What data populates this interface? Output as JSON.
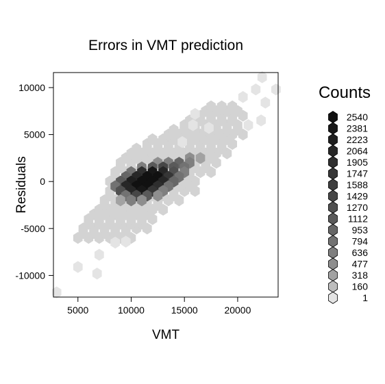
{
  "chart_data": {
    "type": "heatmap",
    "subtype": "hexbin",
    "title": "Errors in VMT prediction",
    "xlabel": "VMT",
    "ylabel": "Residuals",
    "xlim": [
      2700,
      23800
    ],
    "ylim": [
      -12300,
      11600
    ],
    "x_ticks": [
      5000,
      10000,
      15000,
      20000
    ],
    "x_tick_labels": [
      "5000",
      "10000",
      "15000",
      "20000"
    ],
    "y_ticks": [
      -10000,
      -5000,
      0,
      5000,
      10000
    ],
    "y_tick_labels": [
      "-10000",
      "-5000",
      "0",
      "5000",
      "10000"
    ],
    "grid": false,
    "legend": {
      "title": "Counts",
      "placement": "right",
      "levels": [
        "2540",
        "2381",
        "2223",
        "2064",
        "1905",
        "1747",
        "1588",
        "1429",
        "1270",
        "1112",
        "953",
        "794",
        "636",
        "477",
        "318",
        "160",
        "1"
      ],
      "colors": [
        "#111111",
        "#181818",
        "#1f1f1f",
        "#272727",
        "#2e2e2e",
        "#363636",
        "#3e3e3e",
        "#474747",
        "#505050",
        "#5a5a5a",
        "#666666",
        "#727272",
        "#7f7f7f",
        "#8e8e8e",
        "#a2a2a2",
        "#bcbcbc",
        "#e4e4e4"
      ]
    },
    "hex_geometry": {
      "x_step": 1000,
      "y_step": 1000,
      "hex_radius_x": 500,
      "hex_radius_y": 620
    },
    "bin_color_main": "#d3d3d3",
    "regions": [
      {
        "y": -6000,
        "x0": 5000,
        "x1": 10000
      },
      {
        "y": -5000,
        "x0": 5500,
        "x1": 11500
      },
      {
        "y": -4000,
        "x0": 6000,
        "x1": 12000
      },
      {
        "y": -3000,
        "x0": 7000,
        "x1": 13000
      },
      {
        "y": -2000,
        "x0": 7500,
        "x1": 14500
      },
      {
        "y": -1000,
        "x0": 8000,
        "x1": 16000
      },
      {
        "y": 0,
        "x0": 8000,
        "x1": 16500
      },
      {
        "y": 1000,
        "x0": 8500,
        "x1": 18000
      },
      {
        "y": 2000,
        "x0": 9000,
        "x1": 18500
      },
      {
        "y": 3000,
        "x0": 10000,
        "x1": 19500
      },
      {
        "y": 4000,
        "x0": 11500,
        "x1": 20000
      },
      {
        "y": 5000,
        "x0": 13500,
        "x1": 20500
      },
      {
        "y": 6000,
        "x0": 15000,
        "x1": 20500
      },
      {
        "y": 7000,
        "x0": 16500,
        "x1": 20500
      },
      {
        "y": 8000,
        "x0": 17500,
        "x1": 19500
      }
    ],
    "bins": [
      {
        "x": 15500,
        "y": 2500,
        "count": 477
      },
      {
        "x": 16500,
        "y": 2500,
        "count": 318
      },
      {
        "x": 12500,
        "y": 2000,
        "count": 477
      },
      {
        "x": 13500,
        "y": 2000,
        "count": 636
      },
      {
        "x": 14500,
        "y": 2000,
        "count": 953
      },
      {
        "x": 15500,
        "y": 2000,
        "count": 636
      },
      {
        "x": 11000,
        "y": 1500,
        "count": 636
      },
      {
        "x": 12000,
        "y": 1500,
        "count": 1112
      },
      {
        "x": 13000,
        "y": 1500,
        "count": 1429
      },
      {
        "x": 14000,
        "y": 1500,
        "count": 1112
      },
      {
        "x": 15000,
        "y": 1500,
        "count": 794
      },
      {
        "x": 10000,
        "y": 1000,
        "count": 794
      },
      {
        "x": 11000,
        "y": 1000,
        "count": 1905
      },
      {
        "x": 12000,
        "y": 1000,
        "count": 2381
      },
      {
        "x": 13000,
        "y": 1000,
        "count": 2064
      },
      {
        "x": 14000,
        "y": 1000,
        "count": 1270
      },
      {
        "x": 15000,
        "y": 1000,
        "count": 636
      },
      {
        "x": 9500,
        "y": 500,
        "count": 953
      },
      {
        "x": 10500,
        "y": 500,
        "count": 2064
      },
      {
        "x": 11500,
        "y": 500,
        "count": 2540
      },
      {
        "x": 12500,
        "y": 500,
        "count": 2540
      },
      {
        "x": 13500,
        "y": 500,
        "count": 1747
      },
      {
        "x": 14500,
        "y": 500,
        "count": 794
      },
      {
        "x": 9000,
        "y": 0,
        "count": 1112
      },
      {
        "x": 10000,
        "y": 0,
        "count": 2223
      },
      {
        "x": 11000,
        "y": 0,
        "count": 2540
      },
      {
        "x": 12000,
        "y": 0,
        "count": 2540
      },
      {
        "x": 13000,
        "y": 0,
        "count": 2064
      },
      {
        "x": 14000,
        "y": 0,
        "count": 953
      },
      {
        "x": 8500,
        "y": -500,
        "count": 794
      },
      {
        "x": 9500,
        "y": -500,
        "count": 2064
      },
      {
        "x": 10500,
        "y": -500,
        "count": 2540
      },
      {
        "x": 11500,
        "y": -500,
        "count": 2540
      },
      {
        "x": 12500,
        "y": -500,
        "count": 1905
      },
      {
        "x": 13500,
        "y": -500,
        "count": 794
      },
      {
        "x": 9000,
        "y": -1000,
        "count": 1270
      },
      {
        "x": 10000,
        "y": -1000,
        "count": 2064
      },
      {
        "x": 11000,
        "y": -1000,
        "count": 2381
      },
      {
        "x": 12000,
        "y": -1000,
        "count": 1747
      },
      {
        "x": 13000,
        "y": -1000,
        "count": 636
      },
      {
        "x": 9500,
        "y": -1500,
        "count": 794
      },
      {
        "x": 10500,
        "y": -1500,
        "count": 1429
      },
      {
        "x": 11500,
        "y": -1500,
        "count": 1112
      },
      {
        "x": 12500,
        "y": -1500,
        "count": 477
      },
      {
        "x": 9000,
        "y": -2000,
        "count": 318
      },
      {
        "x": 10000,
        "y": -2000,
        "count": 636
      },
      {
        "x": 11000,
        "y": -2000,
        "count": 477
      }
    ],
    "outliers": [
      {
        "x": 3000,
        "y": -11800,
        "count": 1
      },
      {
        "x": 5000,
        "y": -9100,
        "count": 1
      },
      {
        "x": 6800,
        "y": -9800,
        "count": 1
      },
      {
        "x": 7000,
        "y": -7800,
        "count": 1
      },
      {
        "x": 8500,
        "y": -6500,
        "count": 1
      },
      {
        "x": 9500,
        "y": -6400,
        "count": 1
      },
      {
        "x": 22300,
        "y": 11100,
        "count": 1
      },
      {
        "x": 21700,
        "y": 9800,
        "count": 1
      },
      {
        "x": 23600,
        "y": 9800,
        "count": 1
      },
      {
        "x": 22600,
        "y": 8400,
        "count": 1
      },
      {
        "x": 22200,
        "y": 6500,
        "count": 1
      },
      {
        "x": 21000,
        "y": 6000,
        "count": 1
      },
      {
        "x": 20500,
        "y": 9000,
        "count": 1
      },
      {
        "x": 17300,
        "y": 5700,
        "count": 1
      },
      {
        "x": 15800,
        "y": 6000,
        "count": 1
      },
      {
        "x": 16000,
        "y": 7200,
        "count": 1
      },
      {
        "x": 14800,
        "y": 4200,
        "count": 1
      }
    ]
  }
}
